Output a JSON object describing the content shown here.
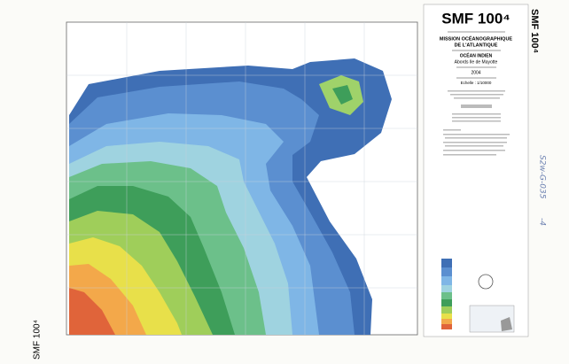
{
  "header": {
    "title": "SMF 100⁴",
    "side_title": "SMF 100⁴",
    "corner_title": "SMF 100⁴"
  },
  "cartouche": {
    "mission_lines": [
      "MISSION OCÉANOGRAPHIQUE",
      "DE L'ATLANTIQUE"
    ],
    "ocean": "OCÉAN INDIEN",
    "area": "Abords Ile de Mayotte",
    "year": "2004",
    "scale": "Echelle : 1/10000"
  },
  "annotations": {
    "archive_code": "S2w-G-035",
    "sheet": "-4"
  }
}
